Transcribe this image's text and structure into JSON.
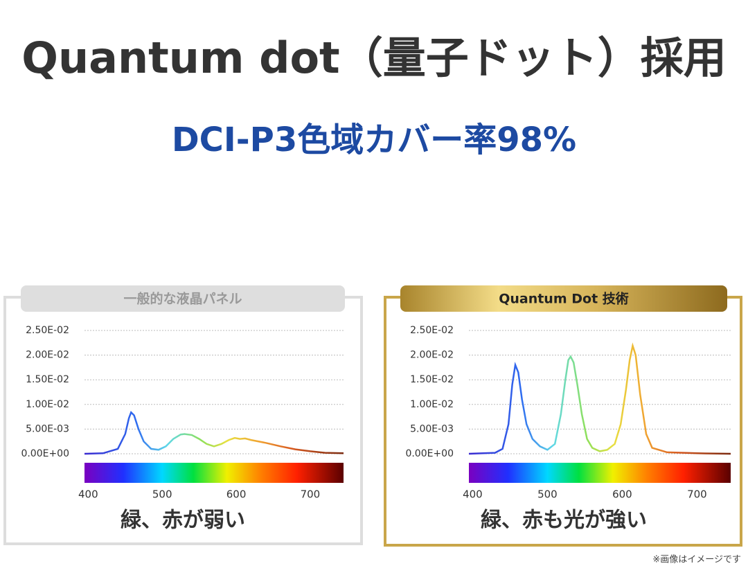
{
  "header": {
    "title": "Quantum dot（量子ドット）採用",
    "subtitle": "DCI-P3色域カバー率98%"
  },
  "note": "※画像はイメージです",
  "chart_data": [
    {
      "type": "line",
      "title": "一般的な液晶パネル",
      "caption": "緑、赤が弱い",
      "x": [
        395,
        420,
        440,
        450,
        455,
        458,
        462,
        468,
        475,
        485,
        495,
        505,
        515,
        525,
        530,
        540,
        550,
        560,
        570,
        580,
        590,
        598,
        605,
        612,
        620,
        640,
        660,
        680,
        700,
        720,
        745
      ],
      "values": [
        0,
        0.0001,
        0.001,
        0.004,
        0.0072,
        0.0084,
        0.0078,
        0.005,
        0.0025,
        0.001,
        0.0008,
        0.0015,
        0.003,
        0.0039,
        0.004,
        0.0038,
        0.003,
        0.002,
        0.0015,
        0.002,
        0.0028,
        0.0032,
        0.003,
        0.0031,
        0.0028,
        0.0022,
        0.0015,
        0.0009,
        0.0005,
        0.0002,
        0.0001
      ],
      "xlim": [
        395,
        745
      ],
      "xticks": [
        400,
        500,
        600,
        700
      ],
      "ylim": [
        0,
        0.025
      ],
      "yticks": [
        {
          "value": 0,
          "label": "0.00E+00"
        },
        {
          "value": 0.005,
          "label": "5.00E-03"
        },
        {
          "value": 0.01,
          "label": "1.00E-02"
        },
        {
          "value": 0.015,
          "label": "1.50E-02"
        },
        {
          "value": 0.02,
          "label": "2.00E-02"
        },
        {
          "value": 0.025,
          "label": "2.50E-02"
        }
      ],
      "grid": true
    },
    {
      "type": "line",
      "title": "Quantum Dot 技術",
      "caption": "緑、赤も光が強い",
      "x": [
        395,
        430,
        440,
        448,
        453,
        457,
        461,
        466,
        472,
        480,
        490,
        500,
        510,
        518,
        524,
        528,
        531,
        535,
        540,
        546,
        553,
        560,
        570,
        580,
        590,
        598,
        605,
        610,
        614,
        618,
        624,
        632,
        640,
        660,
        700,
        745
      ],
      "values": [
        0,
        0.0002,
        0.001,
        0.006,
        0.014,
        0.018,
        0.0165,
        0.011,
        0.006,
        0.003,
        0.0015,
        0.0008,
        0.002,
        0.008,
        0.015,
        0.019,
        0.0197,
        0.0185,
        0.014,
        0.008,
        0.003,
        0.0012,
        0.0005,
        0.0008,
        0.002,
        0.006,
        0.013,
        0.019,
        0.0219,
        0.02,
        0.012,
        0.004,
        0.0012,
        0.0003,
        0.0001,
        0
      ],
      "xlim": [
        395,
        745
      ],
      "xticks": [
        400,
        500,
        600,
        700
      ],
      "ylim": [
        0,
        0.025
      ],
      "yticks": [
        {
          "value": 0,
          "label": "0.00E+00"
        },
        {
          "value": 0.005,
          "label": "5.00E-03"
        },
        {
          "value": 0.01,
          "label": "1.00E-02"
        },
        {
          "value": 0.015,
          "label": "1.50E-02"
        },
        {
          "value": 0.02,
          "label": "2.00E-02"
        },
        {
          "value": 0.025,
          "label": "2.50E-02"
        }
      ],
      "grid": true
    }
  ]
}
